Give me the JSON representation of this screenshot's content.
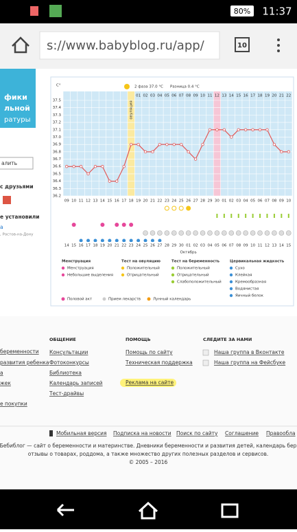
{
  "status_bar": {
    "battery": "80%",
    "time": "11:37"
  },
  "browser": {
    "url": "s://www.babyblog.ru/app/",
    "tabs": "10"
  },
  "sidebar": {
    "banner": [
      "фики",
      "льной",
      "ратуры"
    ],
    "button": "алить",
    "friends": "с друзьями",
    "installed": "е установили",
    "link": "а",
    "location": ", Ростов-на-Дону"
  },
  "chart": {
    "type": "line",
    "unit": "С°",
    "phase": "2 фаза 37.0 °С",
    "difference": "Разница 0.4 °С",
    "ovulation_label": "овуляция",
    "phase_days": [
      null,
      null,
      null,
      null,
      null,
      null,
      null,
      null,
      null,
      null,
      "01",
      "02",
      "03",
      "04",
      "05",
      "06",
      "07",
      "08",
      "09",
      "10",
      "11",
      "12",
      "13",
      "14",
      "15",
      "16",
      "17",
      "18",
      "19",
      "20",
      "21",
      "22"
    ],
    "x": [
      "09",
      "10",
      "11",
      "12",
      "13",
      "14",
      "15",
      "16",
      "17",
      "18",
      "19",
      "20",
      "21",
      "22",
      "23",
      "24",
      "25",
      "26",
      "27",
      "28",
      "29",
      "30",
      "01",
      "02",
      "03",
      "04",
      "05",
      "06",
      "07",
      "08",
      "09",
      "10"
    ],
    "lower_days": [
      "14",
      "15",
      "16",
      "17",
      "18",
      "19",
      "20",
      "21",
      "22",
      "23",
      "24",
      "25",
      "26",
      "27",
      "28",
      "29",
      "30",
      "01",
      "02",
      "03",
      "04",
      "05",
      "06",
      "07",
      "08",
      "09",
      "10",
      "11",
      "12",
      "13",
      "14",
      "15"
    ],
    "month": "Октябрь",
    "values": [
      36.6,
      36.6,
      36.6,
      36.5,
      36.6,
      36.6,
      36.4,
      36.4,
      36.6,
      36.9,
      36.9,
      36.8,
      36.8,
      36.9,
      36.9,
      36.9,
      36.9,
      36.8,
      36.7,
      36.9,
      37.1,
      37.1,
      37.1,
      37.0,
      37.1,
      37.1,
      37.1,
      37.1,
      37.1,
      36.9,
      36.8,
      36.8
    ],
    "color": "#e05a5a",
    "ylim": [
      36.2,
      37.5
    ],
    "yticks": [
      37.5,
      37.4,
      37.3,
      37.2,
      37.1,
      {
        "value": 37,
        "label": "37.0"
      },
      36.9,
      36.8,
      36.7,
      36.6,
      36.5,
      36.4,
      36.3,
      36.2
    ],
    "grid": true,
    "legend": [
      {
        "title": "Менструация",
        "items": [
          "Менструация",
          "Небольшие выделения"
        ]
      },
      {
        "title": "Тест на овуляцию",
        "items": [
          "Положительный",
          "Отрицательный"
        ]
      },
      {
        "title": "Тест на беременность",
        "items": [
          "Положительный",
          "Отрицательный",
          "Слабоположительный"
        ]
      },
      {
        "title": "Цервикальная жидкость",
        "items": [
          "Сухо",
          "Клейкая",
          "Кремообразная",
          "Водянистая",
          "Яичный белок"
        ]
      }
    ],
    "extra_legend": [
      "Половой акт",
      "Прием лекарств",
      "Лунный календарь"
    ]
  },
  "footer": {
    "left_column": [
      "беременности",
      "развития ребенка",
      "а",
      "жек",
      "е покупки"
    ],
    "columns": [
      {
        "title": "ОБЩЕНИЕ",
        "links": [
          "Консультации",
          "Фотоконкурсы",
          "Библиотека",
          "Календарь записей",
          "Тест-драйвы"
        ]
      },
      {
        "title": "ПОМОЩЬ",
        "links": [
          "Помощь по сайту",
          "Техническая поддержка",
          "Реклама на сайте"
        ]
      },
      {
        "title": "СЛЕДИТЕ ЗА НАМИ",
        "links": [
          "Наша группа в Вконтакте",
          "Наша группа на Фейсбуке"
        ]
      }
    ],
    "bottom_links": [
      "Мобильная версия",
      "Подписка на новости",
      "Поиск по сайту",
      "Соглашение",
      "Правообла"
    ],
    "about": [
      "Бебиблог — сайт о беременности и материнстве. Дневники беременности и развития детей, календарь бер",
      "отзывы о товарах, роддома, а также множество других полезных разделов и сервисов."
    ],
    "copyright": "© 2005 – 2016"
  }
}
